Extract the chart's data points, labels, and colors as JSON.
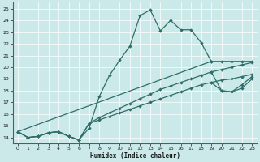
{
  "xlabel": "Humidex (Indice chaleur)",
  "bg_color": "#cce9e9",
  "grid_color": "#b8d8d8",
  "line_color": "#2e6e68",
  "xlim": [
    -0.5,
    23.5
  ],
  "ylim": [
    13.5,
    25.5
  ],
  "xticks": [
    0,
    1,
    2,
    3,
    4,
    5,
    6,
    7,
    8,
    9,
    10,
    11,
    12,
    13,
    14,
    15,
    16,
    17,
    18,
    19,
    20,
    21,
    22,
    23
  ],
  "yticks": [
    14,
    15,
    16,
    17,
    18,
    19,
    20,
    21,
    22,
    23,
    24,
    25
  ],
  "line1_x": [
    0,
    1,
    2,
    3,
    4,
    5,
    6,
    7,
    8,
    9,
    10,
    11,
    12,
    13,
    14,
    15,
    16,
    17,
    18,
    19
  ],
  "line1_y": [
    14.5,
    14.0,
    14.1,
    14.4,
    14.5,
    14.1,
    13.8,
    14.8,
    17.5,
    19.3,
    20.6,
    21.8,
    24.4,
    24.9,
    23.1,
    24.0,
    23.2,
    23.2,
    22.1,
    20.5
  ],
  "line2_x": [
    0,
    19,
    20,
    21,
    22,
    23
  ],
  "line2_y": [
    14.5,
    20.5,
    20.5,
    20.5,
    20.5,
    20.5
  ],
  "line3_x": [
    0,
    1,
    2,
    3,
    4,
    5,
    6,
    7,
    8,
    9,
    10,
    11,
    12,
    13,
    14,
    15,
    16,
    17,
    18,
    19,
    20,
    21,
    22,
    23
  ],
  "line3_y": [
    14.5,
    14.0,
    14.1,
    14.4,
    14.5,
    14.1,
    13.8,
    15.2,
    15.7,
    16.1,
    16.5,
    16.9,
    17.3,
    17.7,
    18.1,
    18.4,
    18.7,
    19.0,
    19.3,
    19.6,
    19.8,
    20.0,
    20.2,
    20.4
  ],
  "line4_x": [
    0,
    1,
    2,
    3,
    4,
    5,
    6,
    7,
    8,
    9,
    10,
    11,
    12,
    13,
    14,
    15,
    16,
    17,
    18,
    19,
    20,
    21,
    22,
    23
  ],
  "line4_y": [
    14.5,
    14.0,
    14.1,
    14.4,
    14.5,
    14.1,
    13.8,
    15.2,
    15.5,
    15.8,
    16.1,
    16.4,
    16.7,
    17.0,
    17.3,
    17.6,
    17.9,
    18.2,
    18.5,
    18.7,
    18.9,
    19.0,
    19.2,
    19.4
  ],
  "line5_x": [
    19,
    20,
    21,
    22,
    23
  ],
  "line5_y": [
    19.6,
    18.0,
    17.9,
    18.2,
    19.0
  ],
  "line6_x": [
    19,
    20,
    21,
    22,
    23
  ],
  "line6_y": [
    18.7,
    18.0,
    17.9,
    18.5,
    19.2
  ]
}
